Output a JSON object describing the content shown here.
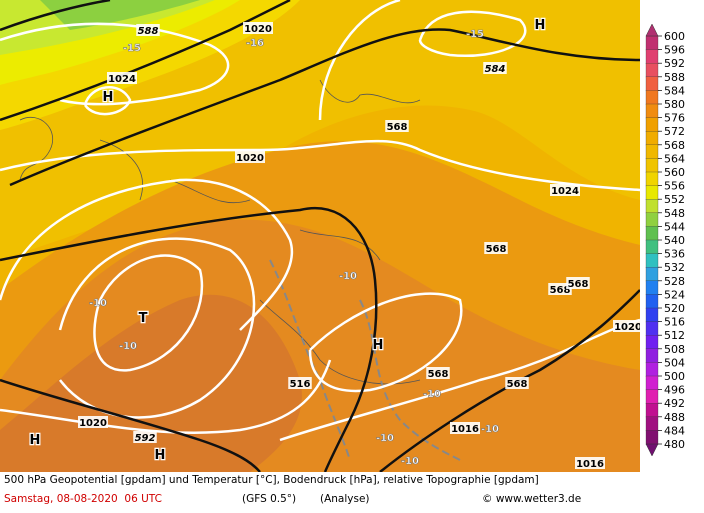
{
  "footer": {
    "line1": "500 hPa Geopotential [gpdam] und Temperatur [°C], Bodendruck [hPa], relative Topographie [gpdam]",
    "date": "Samstag, 08-08-2020  06 UTC",
    "model": "(GFS 0.5°)",
    "run": "(Analyse)",
    "credit": "© www.wetter3.de"
  },
  "scale": {
    "labels": [
      600,
      596,
      592,
      588,
      584,
      580,
      576,
      572,
      568,
      564,
      560,
      556,
      552,
      548,
      544,
      540,
      536,
      532,
      528,
      524,
      520,
      516,
      512,
      508,
      504,
      500,
      496,
      492,
      488,
      484,
      480
    ]
  },
  "map": {
    "labels": [
      "588",
      "-15",
      "-16",
      "1020",
      "1024",
      "H",
      "-15",
      "584",
      "H",
      "568",
      "1020",
      "1024",
      "568",
      "568",
      "568",
      "-10",
      "T",
      "-10",
      "-10",
      "H",
      "1020",
      "516",
      "568",
      "568",
      "-10",
      "-10",
      "1016",
      "-10",
      "-10",
      "1020",
      "592",
      "H",
      "H",
      "1016"
    ]
  }
}
